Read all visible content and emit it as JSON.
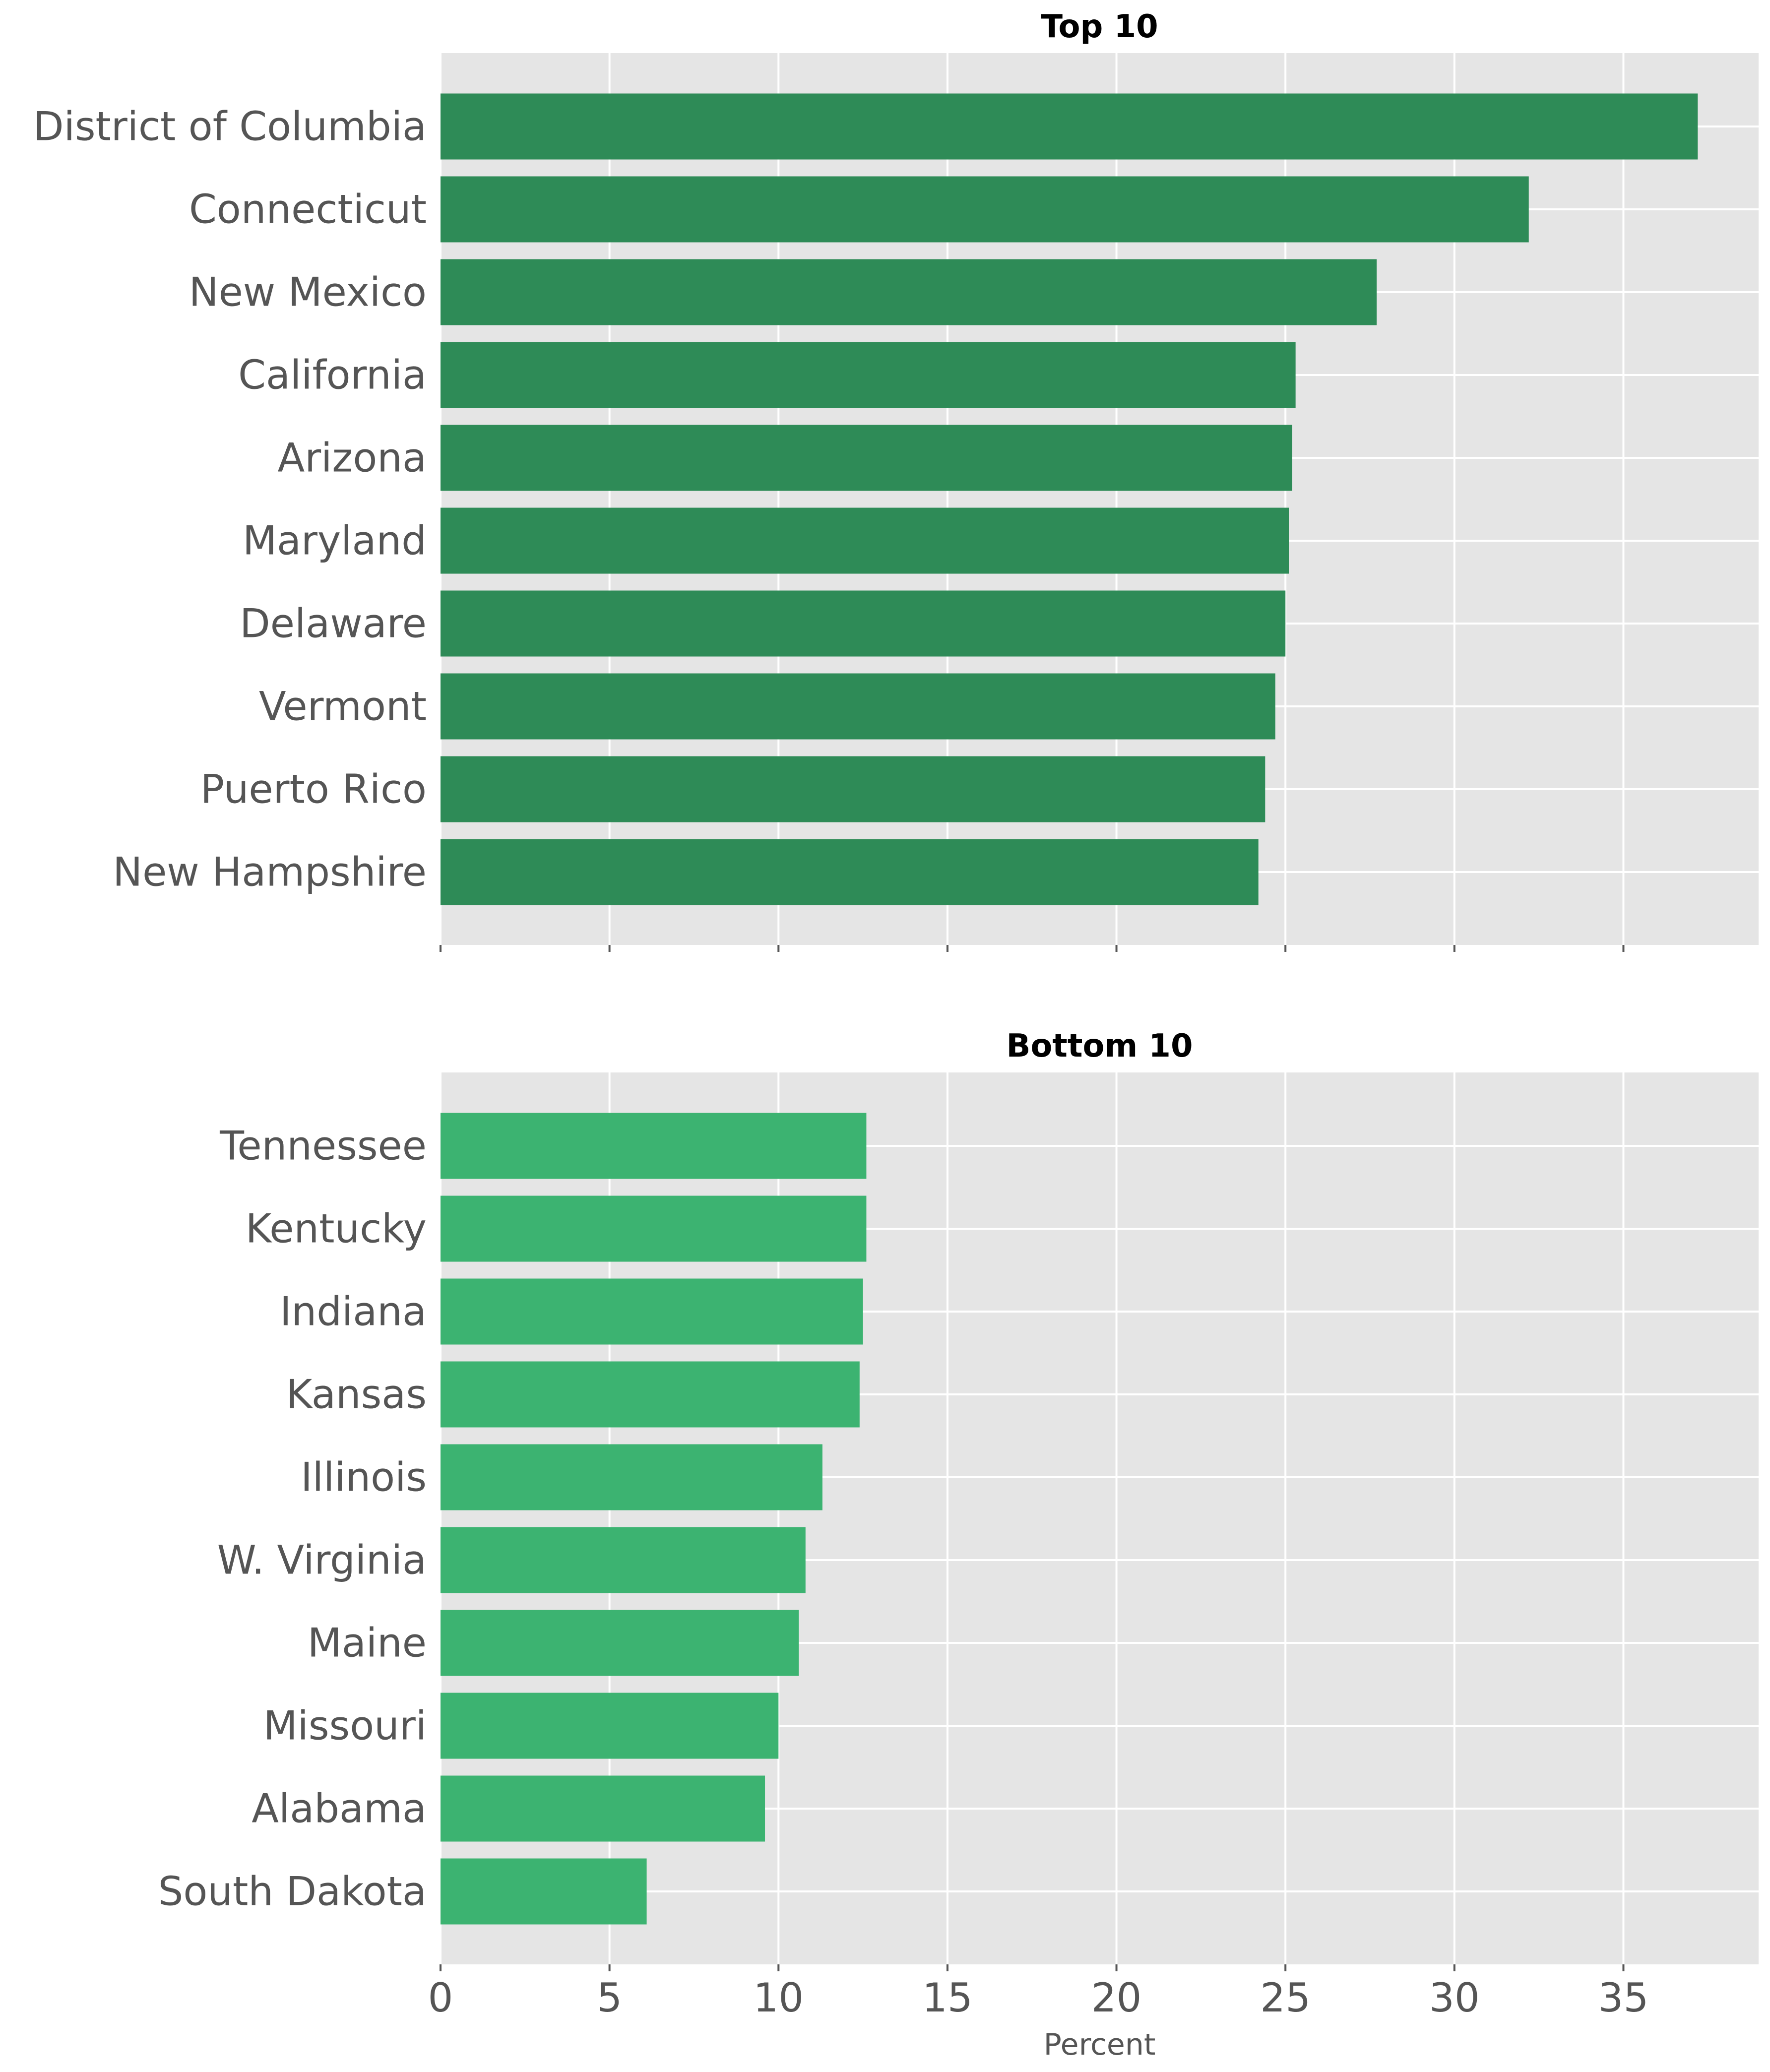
{
  "chart_data": [
    {
      "type": "bar",
      "orientation": "horizontal",
      "title": "Top 10",
      "categories": [
        "District of Columbia",
        "Connecticut",
        "New Mexico",
        "California",
        "Arizona",
        "Maryland",
        "Delaware",
        "Vermont",
        "Puerto Rico",
        "New Hampshire"
      ],
      "values": [
        37.2,
        32.2,
        27.7,
        25.3,
        25.2,
        25.1,
        25.0,
        24.7,
        24.4,
        24.2
      ],
      "color": "#2e8b57",
      "xlabel": "",
      "ylabel": "",
      "xlim": [
        0,
        39
      ],
      "grid": true,
      "show_x_tick_labels": false
    },
    {
      "type": "bar",
      "orientation": "horizontal",
      "title": "Bottom 10",
      "categories": [
        "Tennessee",
        "Kentucky",
        "Indiana",
        "Kansas",
        "Illinois",
        "W. Virginia",
        "Maine",
        "Missouri",
        "Alabama",
        "South Dakota"
      ],
      "values": [
        12.6,
        12.6,
        12.5,
        12.4,
        11.3,
        10.8,
        10.6,
        10.0,
        9.6,
        6.1
      ],
      "color": "#3cb371",
      "xlabel": "Percent",
      "ylabel": "",
      "xlim": [
        0,
        39
      ],
      "grid": true,
      "show_x_tick_labels": true
    }
  ],
  "x_ticks": [
    "0",
    "5",
    "10",
    "15",
    "20",
    "25",
    "30",
    "35"
  ],
  "style": {
    "panel_background": "#e5e5e5",
    "grid_color": "#ffffff",
    "label_color": "#555555",
    "title_color": "#000000"
  }
}
